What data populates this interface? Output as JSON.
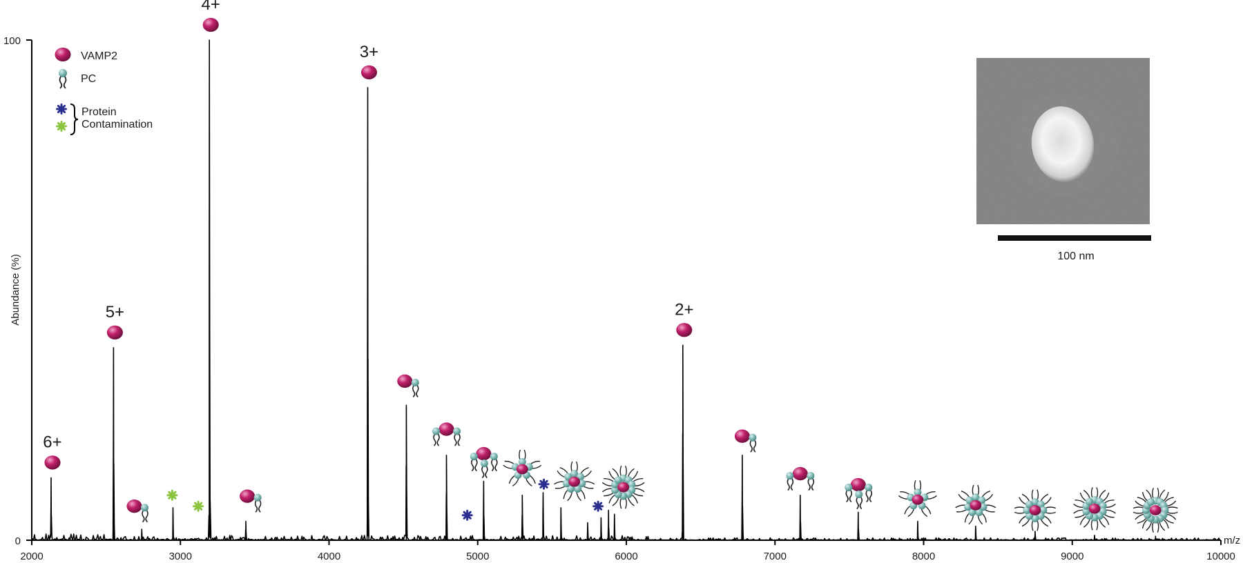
{
  "chart_data": {
    "type": "line",
    "title": "",
    "xlabel": "m/z",
    "ylabel": "Abundance (%)",
    "xlim": [
      2000,
      10000
    ],
    "ylim": [
      0,
      100
    ],
    "x_ticks": [
      2000,
      3000,
      4000,
      5000,
      6000,
      7000,
      8000,
      9000,
      10000
    ],
    "y_tick_labels": [
      "0",
      "100"
    ],
    "grid": false,
    "colors": {
      "line": "#000000",
      "vamp2": "#c0206a",
      "pc": "#7fb8b4",
      "contamination_blue": "#2b2f8f",
      "contamination_green": "#8bc43f"
    },
    "legend": {
      "position": "top-left",
      "vamp2": "VAMP2",
      "pc": "PC",
      "contamination_line1": "Protein",
      "contamination_line2": "Contamination"
    },
    "peaks": [
      {
        "x": 2130,
        "y": 12.5
      },
      {
        "x": 2550,
        "y": 38.5
      },
      {
        "x": 2740,
        "y": 2.2
      },
      {
        "x": 2950,
        "y": 6.5
      },
      {
        "x": 3195,
        "y": 100
      },
      {
        "x": 3440,
        "y": 3.8
      },
      {
        "x": 4260,
        "y": 90.5
      },
      {
        "x": 4520,
        "y": 27
      },
      {
        "x": 4790,
        "y": 17
      },
      {
        "x": 5040,
        "y": 11.8
      },
      {
        "x": 5300,
        "y": 9
      },
      {
        "x": 5440,
        "y": 9.5
      },
      {
        "x": 5560,
        "y": 6.5
      },
      {
        "x": 5740,
        "y": 3.5
      },
      {
        "x": 5830,
        "y": 4.5
      },
      {
        "x": 5880,
        "y": 6.0
      },
      {
        "x": 5920,
        "y": 5.2
      },
      {
        "x": 6380,
        "y": 39
      },
      {
        "x": 6780,
        "y": 17
      },
      {
        "x": 7170,
        "y": 9
      },
      {
        "x": 7560,
        "y": 5.6
      },
      {
        "x": 7960,
        "y": 3.8
      },
      {
        "x": 8350,
        "y": 2.8
      },
      {
        "x": 8750,
        "y": 1.8
      },
      {
        "x": 9150,
        "y": 1.0
      },
      {
        "x": 9560,
        "y": 0.8
      }
    ],
    "charge_states": [
      {
        "label": "6+",
        "x": 2130
      },
      {
        "label": "5+",
        "x": 2550
      },
      {
        "label": "4+",
        "x": 3195
      },
      {
        "label": "3+",
        "x": 4260
      },
      {
        "label": "2+",
        "x": 6380
      }
    ],
    "complex_annotations": [
      {
        "x": 2690,
        "y": 6.8,
        "lipids": 1
      },
      {
        "x": 3450,
        "y": 8.8,
        "lipids": 1
      },
      {
        "x": 4510,
        "y": 31.8,
        "lipids": 1
      },
      {
        "x": 4790,
        "y": 22.2,
        "lipids": 2
      },
      {
        "x": 5040,
        "y": 17.3,
        "lipids": 3
      },
      {
        "x": 5300,
        "y": 14.2,
        "lipids": 5
      },
      {
        "x": 5650,
        "y": 11.7,
        "lipids": 7
      },
      {
        "x": 5980,
        "y": 10.6,
        "lipids": 10
      },
      {
        "x": 6780,
        "y": 20.8,
        "lipids": 1
      },
      {
        "x": 7170,
        "y": 13.3,
        "lipids": 2
      },
      {
        "x": 7560,
        "y": 11.1,
        "lipids": 3
      },
      {
        "x": 7960,
        "y": 8.1,
        "lipids": 5
      },
      {
        "x": 8350,
        "y": 7.0,
        "lipids": 7
      },
      {
        "x": 8750,
        "y": 6.0,
        "lipids": 8
      },
      {
        "x": 9150,
        "y": 6.3,
        "lipids": 10
      },
      {
        "x": 9560,
        "y": 6.0,
        "lipids": 12
      }
    ],
    "contaminants": [
      {
        "x": 2945,
        "y": 9.0,
        "color": "green"
      },
      {
        "x": 3120,
        "y": 6.8,
        "color": "green"
      },
      {
        "x": 4930,
        "y": 5.0,
        "color": "blue"
      },
      {
        "x": 5445,
        "y": 11.2,
        "color": "blue"
      },
      {
        "x": 5810,
        "y": 6.8,
        "color": "blue"
      }
    ],
    "inset": {
      "scale_label": "100 nm"
    }
  }
}
